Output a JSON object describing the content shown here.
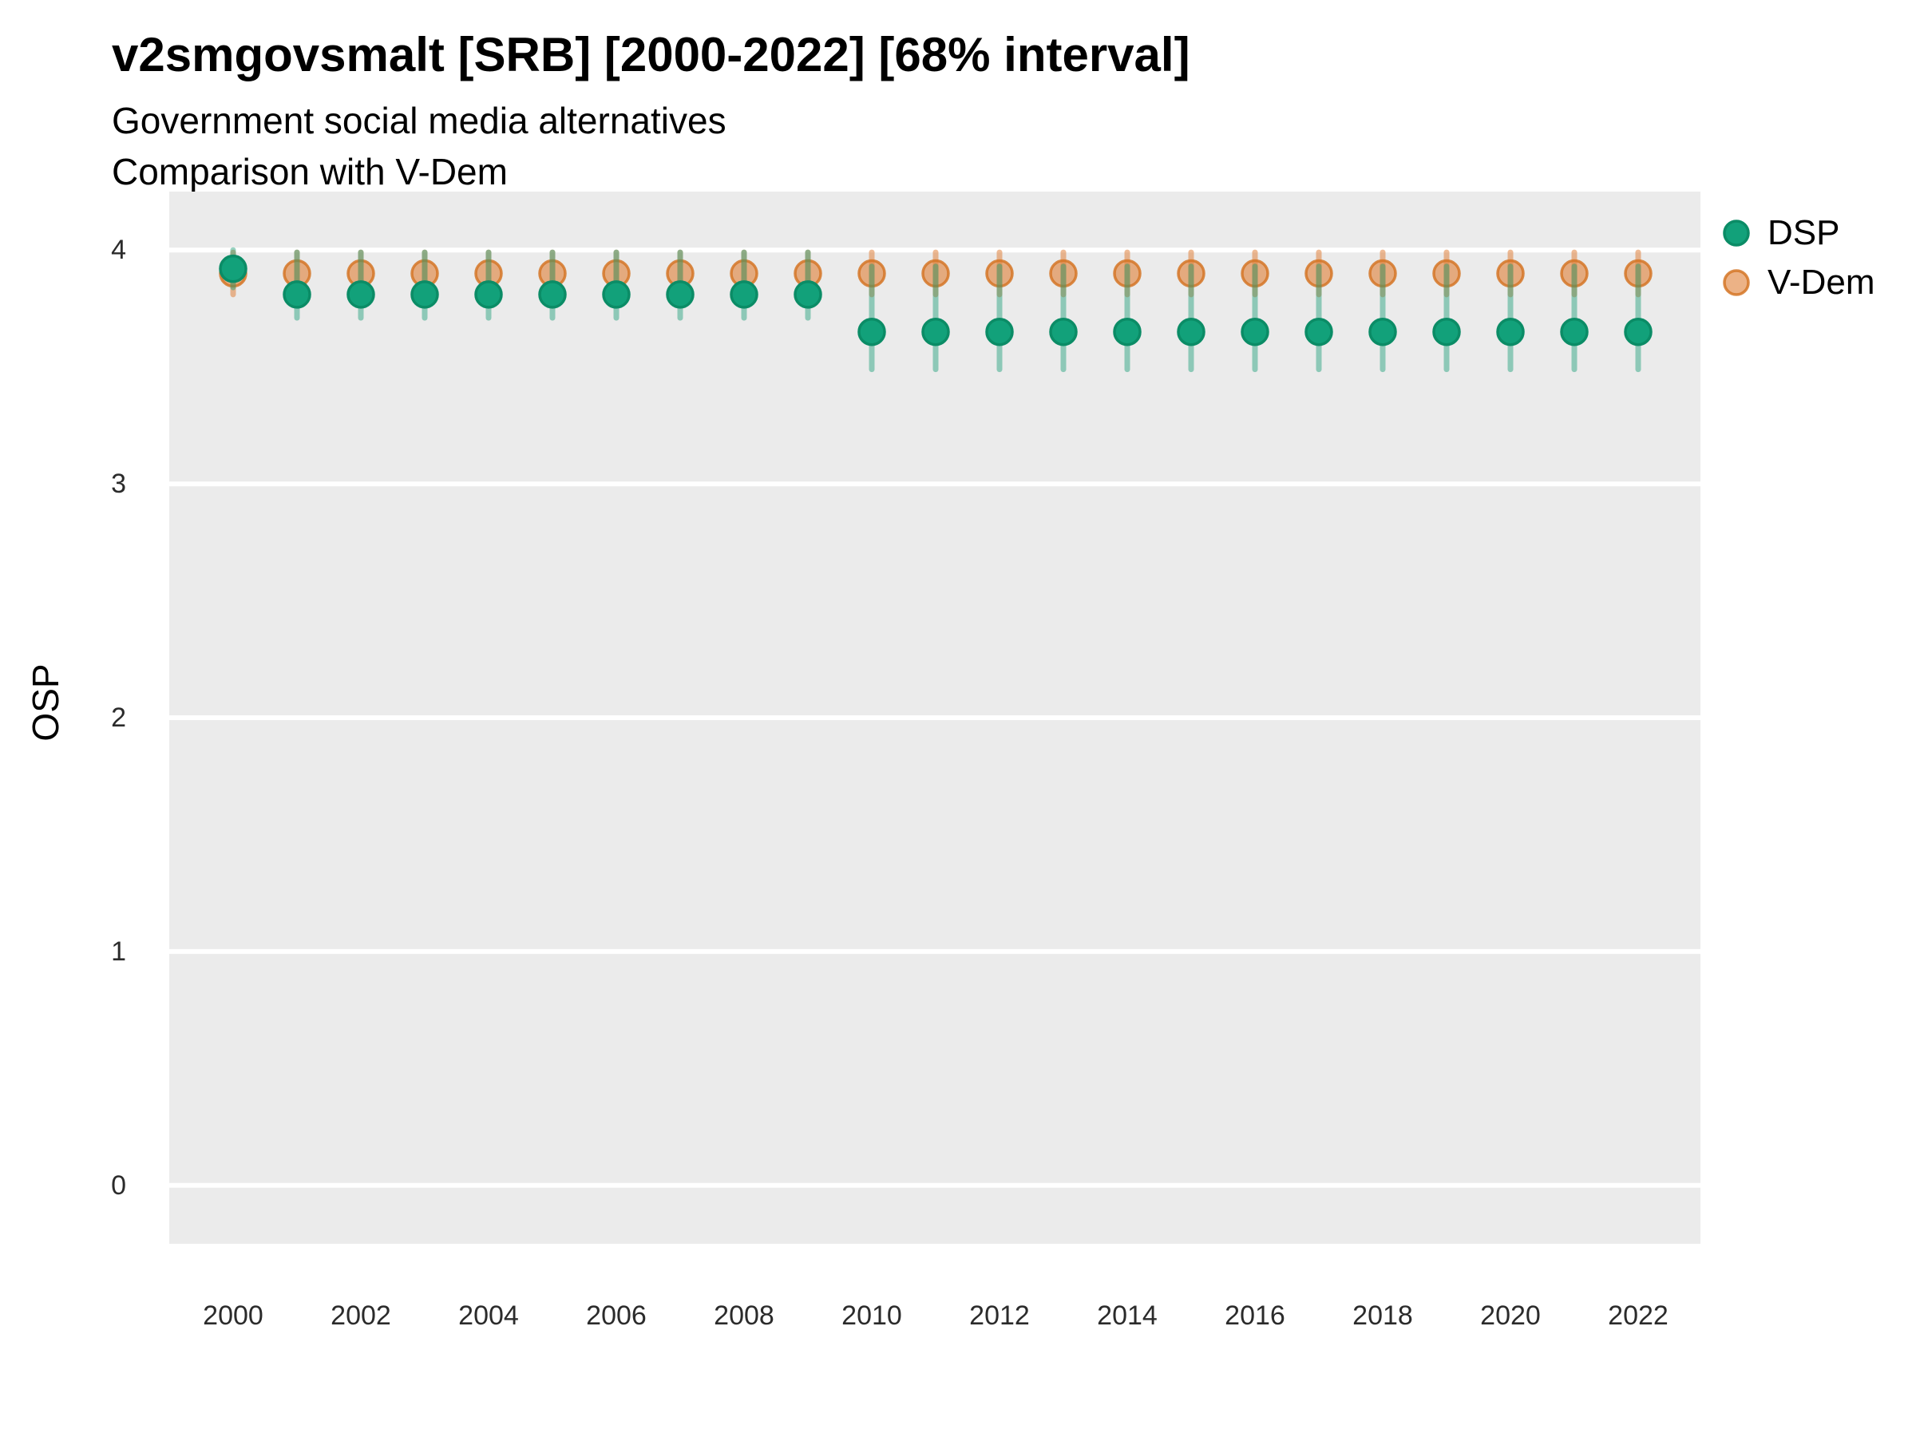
{
  "title": "v2smgovsmalt [SRB] [2000-2022] [68% interval]",
  "subtitle": {
    "line1": "Government social media alternatives",
    "line2": "Comparison with V-Dem"
  },
  "y_axis": {
    "title": "OSP"
  },
  "legend": {
    "items": [
      {
        "label": "DSP"
      },
      {
        "label": "V-Dem"
      }
    ]
  },
  "colors": {
    "panel_bg": "#EBEBEB",
    "gridline": "#FFFFFF",
    "dsp_fill": "#12A17A",
    "dsp_stroke": "#0B8C66",
    "dsp_interval": "rgba(27,158,119,0.45)",
    "vdem_fill": "rgba(224,130,60,0.62)",
    "vdem_stroke": "rgba(213,118,38,0.85)",
    "vdem_interval": "rgba(224,130,60,0.55)"
  },
  "chart_data": {
    "type": "scatter",
    "title": "v2smgovsmalt [SRB] [2000-2022] [68% interval]",
    "subtitle": [
      "Government social media alternatives",
      "Comparison with V-Dem"
    ],
    "xlabel": "",
    "ylabel": "OSP",
    "interval_level": "68%",
    "ylim": [
      -0.25,
      4.25
    ],
    "y_ticks": [
      0,
      1,
      2,
      3,
      4
    ],
    "y_tick_labels": [
      "0",
      "1",
      "2",
      "3",
      "4"
    ],
    "x": [
      2000,
      2001,
      2002,
      2003,
      2004,
      2005,
      2006,
      2007,
      2008,
      2009,
      2010,
      2011,
      2012,
      2013,
      2014,
      2015,
      2016,
      2017,
      2018,
      2019,
      2020,
      2021,
      2022
    ],
    "x_tick_years": [
      2000,
      2002,
      2004,
      2006,
      2008,
      2010,
      2012,
      2014,
      2016,
      2018,
      2020,
      2022
    ],
    "x_tick_labels": [
      "2000",
      "2002",
      "2004",
      "2006",
      "2008",
      "2010",
      "2012",
      "2014",
      "2016",
      "2018",
      "2020",
      "2022"
    ],
    "legend_position": "right",
    "grid": "horizontal-major-only",
    "series": [
      {
        "name": "V-Dem",
        "est": [
          3.9,
          3.9,
          3.9,
          3.9,
          3.9,
          3.9,
          3.9,
          3.9,
          3.9,
          3.9,
          3.9,
          3.9,
          3.9,
          3.9,
          3.9,
          3.9,
          3.9,
          3.9,
          3.9,
          3.9,
          3.9,
          3.9,
          3.9
        ],
        "lo": [
          3.81,
          3.81,
          3.81,
          3.81,
          3.81,
          3.81,
          3.81,
          3.81,
          3.81,
          3.81,
          3.81,
          3.81,
          3.81,
          3.81,
          3.81,
          3.81,
          3.81,
          3.81,
          3.81,
          3.81,
          3.81,
          3.81,
          3.81
        ],
        "hi": [
          3.99,
          3.99,
          3.99,
          3.99,
          3.99,
          3.99,
          3.99,
          3.99,
          3.99,
          3.99,
          3.99,
          3.99,
          3.99,
          3.99,
          3.99,
          3.99,
          3.99,
          3.99,
          3.99,
          3.99,
          3.99,
          3.99,
          3.99
        ]
      },
      {
        "name": "DSP",
        "est": [
          3.92,
          3.81,
          3.81,
          3.81,
          3.81,
          3.81,
          3.81,
          3.81,
          3.81,
          3.81,
          3.65,
          3.65,
          3.65,
          3.65,
          3.65,
          3.65,
          3.65,
          3.65,
          3.65,
          3.65,
          3.65,
          3.65,
          3.65
        ],
        "lo": [
          3.84,
          3.71,
          3.71,
          3.71,
          3.71,
          3.71,
          3.71,
          3.71,
          3.71,
          3.71,
          3.49,
          3.49,
          3.49,
          3.49,
          3.49,
          3.49,
          3.49,
          3.49,
          3.49,
          3.49,
          3.49,
          3.49,
          3.49
        ],
        "hi": [
          4.0,
          3.99,
          3.99,
          3.99,
          3.99,
          3.99,
          3.99,
          3.99,
          3.99,
          3.99,
          3.93,
          3.93,
          3.93,
          3.93,
          3.93,
          3.93,
          3.93,
          3.93,
          3.93,
          3.93,
          3.93,
          3.93,
          3.93
        ]
      }
    ]
  }
}
